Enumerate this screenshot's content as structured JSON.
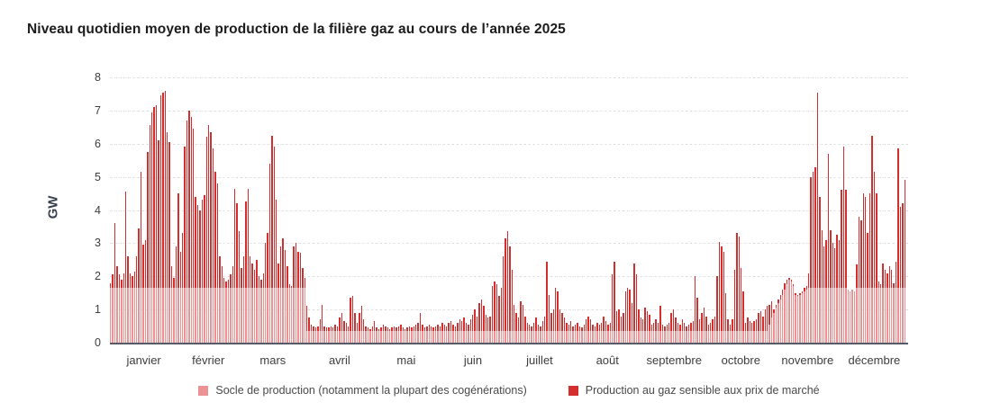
{
  "header": {
    "title": "Niveau quotidien moyen de production de la filière gaz au cours de l’année 2025"
  },
  "colors": {
    "socle": "#ea9294",
    "sensible": "#d32f2e",
    "grid": "#d9d9d9",
    "axis_line": "#5a5a66"
  },
  "legend": {
    "socle_label": "Socle de production (notamment la plupart des cogénérations)",
    "sensible_label": "Production au gaz sensible aux prix de marché"
  },
  "chart_data": {
    "type": "bar",
    "stacked": true,
    "title": "Niveau quotidien moyen de production de la filière gaz au cours de l’année 2025",
    "ylabel": "GW",
    "xlabel": "",
    "ylim": [
      0,
      8
    ],
    "yticks": [
      0,
      1,
      2,
      3,
      4,
      5,
      6,
      7,
      8
    ],
    "grid": "horizontal-dashed",
    "legend_position": "bottom-center",
    "x_unit": "jour de l'année 2025 (une barre par jour)",
    "categories": [
      "janvier",
      "février",
      "mars",
      "avril",
      "mai",
      "juin",
      "juillet",
      "août",
      "septembre",
      "octobre",
      "novembre",
      "décembre"
    ],
    "days_per_month": [
      31,
      28,
      31,
      30,
      31,
      30,
      31,
      31,
      30,
      31,
      30,
      31
    ],
    "series_note": "daily_total_gw = production totale (socle + sensible); daily_socle_gw = partie socle (rose); la partie rouge = total - socle",
    "daily_total_gw": [
      1.8,
      2.05,
      3.6,
      2.3,
      2.05,
      1.9,
      2.1,
      4.55,
      2.6,
      2.1,
      2.0,
      2.15,
      2.6,
      3.45,
      5.15,
      2.95,
      3.1,
      5.75,
      6.55,
      6.95,
      7.1,
      7.15,
      6.1,
      7.45,
      7.55,
      7.6,
      6.35,
      6.05,
      2.3,
      1.95,
      2.9,
      4.5,
      2.75,
      3.3,
      5.9,
      6.7,
      7.0,
      6.8,
      6.45,
      4.4,
      4.15,
      4.0,
      4.3,
      4.45,
      6.2,
      6.55,
      6.35,
      5.85,
      5.15,
      4.8,
      2.6,
      2.3,
      1.95,
      1.85,
      1.9,
      2.05,
      2.3,
      4.65,
      4.2,
      3.35,
      2.25,
      2.6,
      4.25,
      4.65,
      2.6,
      2.4,
      2.2,
      2.5,
      2.0,
      1.9,
      2.1,
      3.0,
      3.3,
      5.4,
      6.25,
      5.9,
      4.3,
      2.4,
      2.9,
      3.15,
      2.8,
      2.3,
      1.75,
      1.7,
      2.9,
      3.0,
      2.75,
      2.7,
      2.25,
      1.95,
      1.1,
      0.75,
      0.55,
      0.5,
      0.45,
      0.5,
      0.7,
      1.15,
      0.5,
      0.45,
      0.45,
      0.5,
      0.45,
      0.55,
      0.5,
      0.75,
      0.9,
      0.65,
      0.6,
      0.5,
      1.35,
      1.4,
      0.9,
      0.6,
      0.9,
      1.1,
      0.7,
      0.5,
      0.45,
      0.4,
      0.5,
      0.65,
      0.45,
      0.4,
      0.45,
      0.55,
      0.5,
      0.45,
      0.4,
      0.45,
      0.5,
      0.45,
      0.5,
      0.55,
      0.45,
      0.4,
      0.45,
      0.5,
      0.45,
      0.5,
      0.55,
      0.6,
      0.9,
      0.55,
      0.45,
      0.5,
      0.55,
      0.5,
      0.45,
      0.5,
      0.55,
      0.5,
      0.6,
      0.55,
      0.5,
      0.6,
      0.65,
      0.55,
      0.5,
      0.6,
      0.7,
      0.65,
      0.75,
      0.6,
      0.55,
      0.7,
      0.85,
      1.0,
      0.8,
      1.2,
      1.3,
      1.1,
      0.85,
      0.75,
      0.8,
      1.7,
      1.85,
      1.75,
      1.4,
      1.65,
      2.6,
      3.15,
      3.35,
      2.9,
      2.2,
      1.15,
      0.9,
      0.75,
      1.25,
      1.15,
      0.8,
      0.6,
      0.55,
      0.5,
      0.6,
      0.75,
      0.55,
      0.5,
      0.65,
      0.8,
      2.45,
      1.45,
      0.9,
      1.0,
      1.65,
      1.55,
      1.0,
      0.9,
      0.75,
      0.6,
      0.55,
      0.65,
      0.5,
      0.55,
      0.6,
      0.5,
      0.45,
      0.55,
      0.7,
      0.8,
      0.7,
      0.55,
      0.5,
      0.6,
      0.55,
      0.6,
      0.8,
      0.65,
      0.55,
      0.6,
      2.05,
      2.45,
      0.95,
      1.0,
      0.8,
      0.9,
      1.55,
      1.65,
      1.6,
      1.2,
      2.4,
      2.05,
      1.0,
      0.75,
      0.7,
      1.05,
      0.95,
      0.85,
      0.55,
      0.6,
      0.7,
      0.6,
      1.1,
      0.55,
      0.5,
      0.55,
      0.6,
      0.9,
      1.0,
      0.75,
      0.6,
      0.55,
      0.7,
      0.6,
      0.5,
      0.55,
      0.6,
      0.65,
      2.0,
      1.35,
      0.7,
      0.9,
      1.05,
      0.8,
      0.55,
      0.6,
      0.7,
      0.8,
      2.0,
      3.05,
      2.9,
      2.75,
      1.5,
      0.7,
      0.55,
      0.7,
      2.2,
      3.3,
      3.2,
      2.25,
      1.55,
      0.6,
      0.75,
      0.65,
      0.6,
      0.65,
      0.7,
      0.9,
      0.95,
      0.8,
      1.0,
      1.1,
      1.15,
      1.25,
      1.0,
      1.15,
      1.3,
      1.45,
      1.6,
      1.8,
      1.9,
      1.95,
      1.9,
      1.75,
      1.5,
      1.45,
      1.5,
      1.55,
      1.65,
      1.7,
      2.1,
      5.0,
      5.15,
      5.3,
      7.55,
      4.4,
      3.4,
      2.9,
      3.1,
      5.7,
      3.4,
      3.0,
      2.85,
      3.25,
      3.1,
      4.6,
      5.9,
      4.6,
      1.6,
      1.55,
      1.6,
      1.55,
      2.35,
      3.8,
      3.7,
      4.5,
      4.4,
      3.3,
      4.5,
      6.25,
      5.15,
      4.5,
      1.85,
      1.75,
      2.4,
      2.2,
      2.1,
      2.3,
      2.2,
      1.8,
      2.45,
      5.85,
      4.1,
      4.2,
      4.9
    ],
    "daily_socle_gw": [
      1.65,
      1.65,
      1.65,
      1.65,
      1.65,
      1.65,
      1.65,
      1.65,
      1.65,
      1.65,
      1.65,
      1.65,
      1.65,
      1.65,
      1.65,
      1.65,
      1.65,
      1.65,
      1.65,
      1.65,
      1.65,
      1.65,
      1.65,
      1.65,
      1.65,
      1.65,
      1.65,
      1.65,
      1.65,
      1.65,
      1.65,
      1.65,
      1.65,
      1.65,
      1.65,
      1.65,
      1.65,
      1.65,
      1.65,
      1.65,
      1.65,
      1.65,
      1.65,
      1.65,
      1.65,
      1.65,
      1.65,
      1.65,
      1.65,
      1.65,
      1.65,
      1.65,
      1.65,
      1.65,
      1.65,
      1.65,
      1.65,
      1.65,
      1.65,
      1.65,
      1.65,
      1.65,
      1.65,
      1.65,
      1.65,
      1.65,
      1.65,
      1.65,
      1.65,
      1.65,
      1.65,
      1.65,
      1.65,
      1.65,
      1.65,
      1.65,
      1.65,
      1.65,
      1.65,
      1.65,
      1.65,
      1.65,
      1.65,
      1.65,
      1.65,
      1.65,
      1.65,
      1.65,
      1.65,
      1.65,
      0.35,
      0.35,
      0.35,
      0.35,
      0.35,
      0.35,
      0.35,
      0.35,
      0.35,
      0.35,
      0.35,
      0.35,
      0.35,
      0.35,
      0.35,
      0.35,
      0.35,
      0.35,
      0.35,
      0.35,
      0.35,
      0.35,
      0.35,
      0.35,
      0.35,
      0.35,
      0.35,
      0.35,
      0.35,
      0.35,
      0.35,
      0.35,
      0.35,
      0.35,
      0.35,
      0.35,
      0.35,
      0.35,
      0.35,
      0.35,
      0.35,
      0.35,
      0.35,
      0.35,
      0.35,
      0.35,
      0.35,
      0.35,
      0.35,
      0.35,
      0.35,
      0.35,
      0.35,
      0.35,
      0.35,
      0.35,
      0.35,
      0.35,
      0.35,
      0.35,
      0.35,
      0.35,
      0.35,
      0.35,
      0.35,
      0.35,
      0.35,
      0.35,
      0.35,
      0.35,
      0.35,
      0.35,
      0.35,
      0.35,
      0.35,
      0.35,
      0.35,
      0.35,
      0.35,
      0.35,
      0.35,
      0.35,
      0.35,
      0.35,
      0.35,
      0.35,
      0.35,
      0.35,
      0.35,
      0.35,
      0.35,
      0.35,
      0.35,
      0.35,
      0.35,
      0.35,
      0.35,
      0.35,
      0.35,
      0.35,
      0.35,
      0.35,
      0.35,
      0.35,
      0.35,
      0.35,
      0.35,
      0.35,
      0.35,
      0.35,
      0.35,
      0.35,
      0.35,
      0.35,
      0.35,
      0.35,
      0.35,
      0.35,
      0.35,
      0.35,
      0.35,
      0.35,
      0.35,
      0.35,
      0.35,
      0.35,
      0.35,
      0.35,
      0.35,
      0.35,
      0.35,
      0.35,
      0.35,
      0.35,
      0.35,
      0.35,
      0.35,
      0.35,
      0.35,
      0.35,
      0.35,
      0.35,
      0.35,
      0.35,
      0.35,
      0.35,
      0.35,
      0.35,
      0.35,
      0.35,
      0.35,
      0.35,
      0.35,
      0.35,
      0.35,
      0.35,
      0.35,
      0.35,
      0.35,
      0.35,
      0.35,
      0.35,
      0.35,
      0.35,
      0.35,
      0.35,
      0.35,
      0.35,
      0.35,
      0.35,
      0.35,
      0.35,
      0.35,
      0.35,
      0.35,
      0.35,
      0.35,
      0.35,
      0.35,
      0.35,
      0.35,
      0.35,
      0.35,
      0.35,
      0.35,
      0.35,
      0.35,
      0.35,
      0.35,
      0.35,
      0.35,
      0.35,
      0.35,
      0.35,
      0.35,
      0.35,
      0.35,
      0.35,
      0.35,
      0.35,
      0.35,
      0.35,
      0.35,
      0.35,
      0.35,
      0.35,
      0.35,
      0.35,
      0.35,
      0.35,
      0.35,
      0.35,
      0.55,
      0.75,
      0.9,
      1.05,
      1.2,
      1.3,
      1.45,
      1.6,
      1.75,
      1.9,
      1.85,
      1.7,
      1.45,
      1.4,
      1.45,
      1.5,
      1.55,
      1.6,
      1.65,
      1.65,
      1.65,
      1.65,
      1.65,
      1.65,
      1.65,
      1.65,
      1.65,
      1.65,
      1.65,
      1.65,
      1.65,
      1.65,
      1.65,
      1.65,
      1.65,
      1.65,
      1.6,
      1.55,
      1.6,
      1.55,
      1.65,
      1.65,
      1.65,
      1.65,
      1.65,
      1.65,
      1.65,
      1.65,
      1.65,
      1.65,
      1.65,
      1.65,
      1.65,
      1.65,
      1.65,
      1.65,
      1.65,
      1.65,
      1.65,
      1.65,
      1.65,
      1.65,
      1.65
    ]
  }
}
